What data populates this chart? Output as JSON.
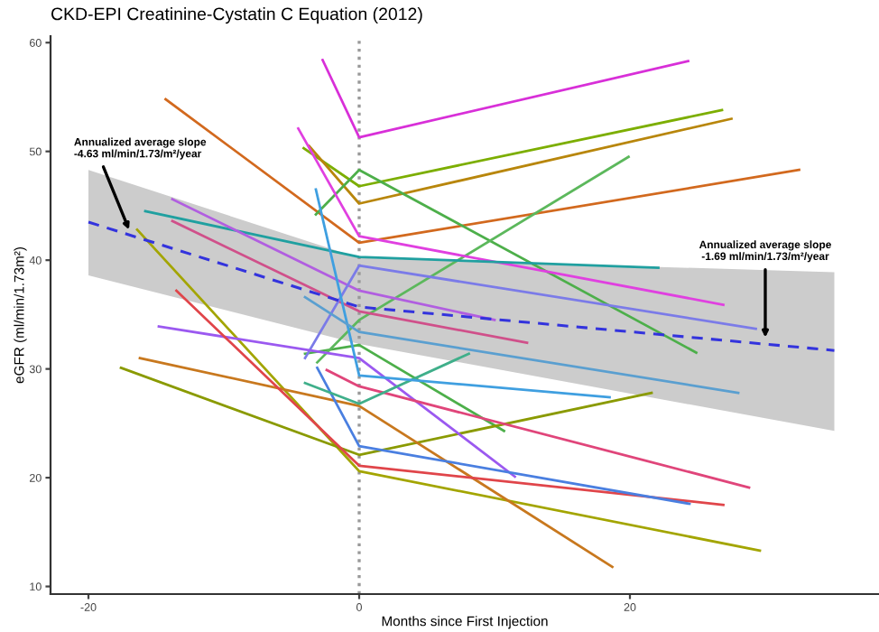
{
  "chart_data": {
    "type": "line",
    "title": "CKD-EPI Creatinine-Cystatin C Equation (2012)",
    "xlabel": "Months since First Injection",
    "ylabel": "eGFR (ml/min/1.73m²)",
    "xlim": [
      -22.8,
      38.4
    ],
    "ylim": [
      9.3,
      60.6
    ],
    "xticks": [
      -20,
      0,
      20
    ],
    "yticks": [
      10,
      20,
      30,
      40,
      50,
      60
    ],
    "grid": false,
    "marker": "none",
    "line_style": "solid",
    "series": [
      {
        "color": "#d82fd8",
        "x": [
          -2.7,
          0,
          24.3
        ],
        "values": [
          58.4,
          51.3,
          58.3
        ]
      },
      {
        "color": "#7cae00",
        "x": [
          -4.1,
          0,
          26.8
        ],
        "values": [
          50.3,
          46.8,
          53.8
        ]
      },
      {
        "color": "#b8860b",
        "x": [
          -3.7,
          0,
          27.5
        ],
        "values": [
          50.5,
          45.2,
          53.0
        ]
      },
      {
        "color": "#d2691e",
        "x": [
          -14.3,
          0,
          32.5
        ],
        "values": [
          54.8,
          41.6,
          48.3
        ]
      },
      {
        "color": "#4daf4a",
        "x": [
          -3.2,
          0,
          24.9
        ],
        "values": [
          44.2,
          48.3,
          31.5
        ]
      },
      {
        "color": "#4daf4a",
        "x": [
          -4.0,
          0,
          10.7
        ],
        "values": [
          31.4,
          32.2,
          24.3
        ]
      },
      {
        "color": "#5cb85c",
        "x": [
          -3.1,
          0,
          19.9
        ],
        "values": [
          30.6,
          34.5,
          49.5
        ]
      },
      {
        "color": "#e040e0",
        "x": [
          -4.5,
          0,
          26.9
        ],
        "values": [
          52.1,
          42.2,
          35.9
        ]
      },
      {
        "color": "#20a0a0",
        "x": [
          -15.8,
          0,
          22.1
        ],
        "values": [
          44.5,
          40.3,
          39.3
        ]
      },
      {
        "color": "#b15ee0",
        "x": [
          -13.8,
          0,
          10.0
        ],
        "values": [
          45.6,
          37.2,
          34.5
        ]
      },
      {
        "color": "#d0508a",
        "x": [
          -13.8,
          0,
          12.4
        ],
        "values": [
          43.6,
          35.3,
          32.4
        ]
      },
      {
        "color": "#7b7be8",
        "x": [
          -4.0,
          0,
          29.3
        ],
        "values": [
          31.0,
          39.5,
          33.7
        ]
      },
      {
        "color": "#a3a500",
        "x": [
          -16.4,
          0,
          29.6
        ],
        "values": [
          42.8,
          20.6,
          13.3
        ]
      },
      {
        "color": "#8a9a00",
        "x": [
          -17.6,
          0,
          21.6
        ],
        "values": [
          30.1,
          22.1,
          27.8
        ]
      },
      {
        "color": "#c8781e",
        "x": [
          -16.2,
          0,
          18.7
        ],
        "values": [
          31.0,
          26.6,
          11.8
        ]
      },
      {
        "color": "#9b59f0",
        "x": [
          -14.8,
          0,
          11.5
        ],
        "values": [
          33.9,
          31.0,
          20.1
        ]
      },
      {
        "color": "#e0454a",
        "x": [
          -13.5,
          0,
          26.9
        ],
        "values": [
          37.2,
          21.1,
          17.5
        ]
      },
      {
        "color": "#4a7fe0",
        "x": [
          -3.1,
          0,
          24.4
        ],
        "values": [
          30.1,
          22.9,
          17.6
        ]
      },
      {
        "color": "#e0457a",
        "x": [
          -2.4,
          0,
          28.8
        ],
        "values": [
          29.9,
          28.4,
          19.1
        ]
      },
      {
        "color": "#3faf8a",
        "x": [
          -4.0,
          0,
          8.1
        ],
        "values": [
          28.7,
          26.8,
          31.4
        ]
      },
      {
        "color": "#3f9fe0",
        "x": [
          -3.2,
          0,
          18.5
        ],
        "values": [
          46.5,
          29.4,
          27.4
        ]
      },
      {
        "color": "#5a9fd0",
        "x": [
          -4.0,
          0,
          28.0
        ],
        "values": [
          36.6,
          33.4,
          27.8
        ]
      },
      {
        "color": "#3333dd",
        "line_style": "dashed",
        "x": [
          -20.0,
          0,
          35.1
        ],
        "values": [
          43.5,
          35.7,
          31.7
        ],
        "lower": [
          38.6,
          32.3,
          24.3
        ],
        "upper": [
          48.3,
          40.2,
          38.9
        ]
      }
    ],
    "ref_lines": [
      {
        "axis": "x",
        "value": 0,
        "color": "#999999",
        "line_style": "dotted"
      }
    ],
    "annotations": [
      {
        "text": "Annualized average slope\n-4.63 ml/min/1.73/m²/year",
        "x": -17.0,
        "y": 42.8
      },
      {
        "text": "Annualized average slope\n-1.69 ml/min/1.73/m²/year",
        "x": 30.0,
        "y": 32.9
      }
    ]
  }
}
